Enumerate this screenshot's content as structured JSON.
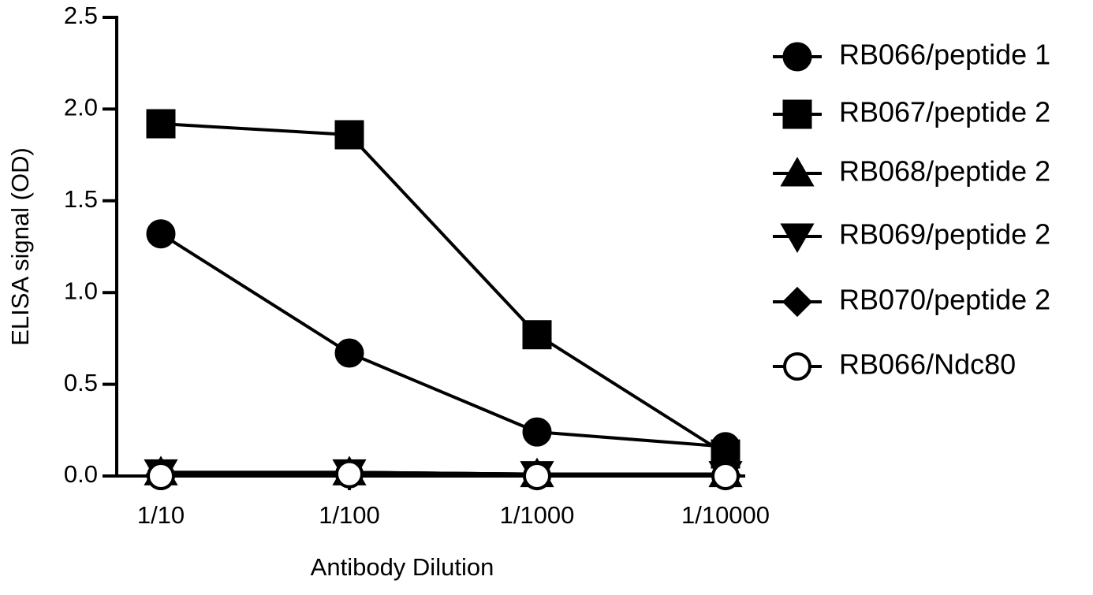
{
  "chart_data": {
    "type": "line",
    "x_label": "Antibody Dilution",
    "y_label": "ELISA signal (OD)",
    "categories": [
      "1/10",
      "1/100",
      "1/1000",
      "1/10000"
    ],
    "ylim": [
      0,
      2.5
    ],
    "yticks": [
      {
        "value": 0,
        "label": "0.0"
      },
      0.5,
      {
        "value": 1,
        "label": "1.0"
      },
      1.5,
      {
        "value": 2,
        "label": "2.0"
      },
      2.5
    ],
    "series": [
      {
        "name": "RB066/peptide 1",
        "color": "#000000",
        "marker": "circle",
        "values": [
          1.32,
          0.67,
          0.24,
          0.16
        ]
      },
      {
        "name": "RB067/peptide 2",
        "color": "#000000",
        "marker": "square",
        "values": [
          1.92,
          1.86,
          0.77,
          0.12
        ]
      },
      {
        "name": "RB068/peptide 2",
        "color": "#000000",
        "marker": "triangle-up",
        "values": [
          0.02,
          0.02,
          0.01,
          0.01
        ]
      },
      {
        "name": "RB069/peptide 2",
        "color": "#000000",
        "marker": "triangle-down",
        "values": [
          0.02,
          0.02,
          0.01,
          0.01
        ]
      },
      {
        "name": "RB070/peptide 2",
        "color": "#000000",
        "marker": "diamond",
        "values": [
          0.01,
          0.02,
          0.01,
          0.01
        ]
      },
      {
        "name": "RB066/Ndc80",
        "color": "#000000",
        "marker": "open-circle",
        "values": [
          0.0,
          0.01,
          0.0,
          0.0
        ]
      }
    ]
  }
}
